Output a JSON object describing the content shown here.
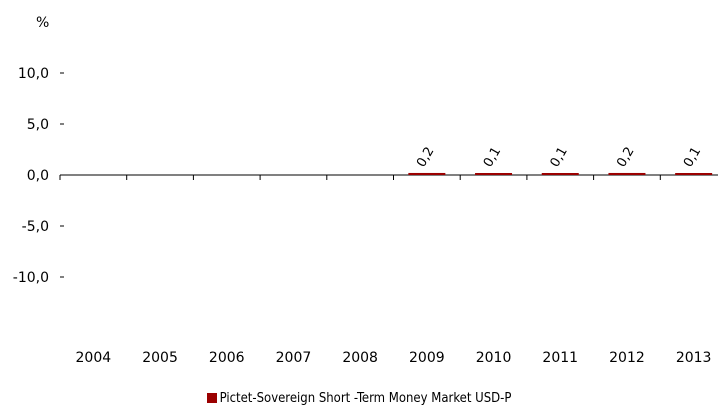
{
  "chart_data": {
    "type": "bar",
    "unit_label": "%",
    "categories": [
      "2004",
      "2005",
      "2006",
      "2007",
      "2008",
      "2009",
      "2010",
      "2011",
      "2012",
      "2013"
    ],
    "series": [
      {
        "name": "Pictet-Sovereign Short -Term Money Market USD-P",
        "values": [
          null,
          null,
          null,
          null,
          null,
          0.2,
          0.1,
          0.1,
          0.2,
          0.1
        ],
        "labels": [
          "",
          "",
          "",
          "",
          "",
          "0,2",
          "0,1",
          "0,1",
          "0,2",
          "0,1"
        ],
        "color": "#9b0000"
      }
    ],
    "y_ticks": [
      "10,0",
      "5,0",
      "0,0",
      "-5,0",
      "-10,0"
    ],
    "y_tick_values": [
      10,
      5,
      0,
      -5,
      -10
    ],
    "ylim": [
      -15,
      15
    ],
    "grid": false,
    "legend_position": "bottom"
  }
}
